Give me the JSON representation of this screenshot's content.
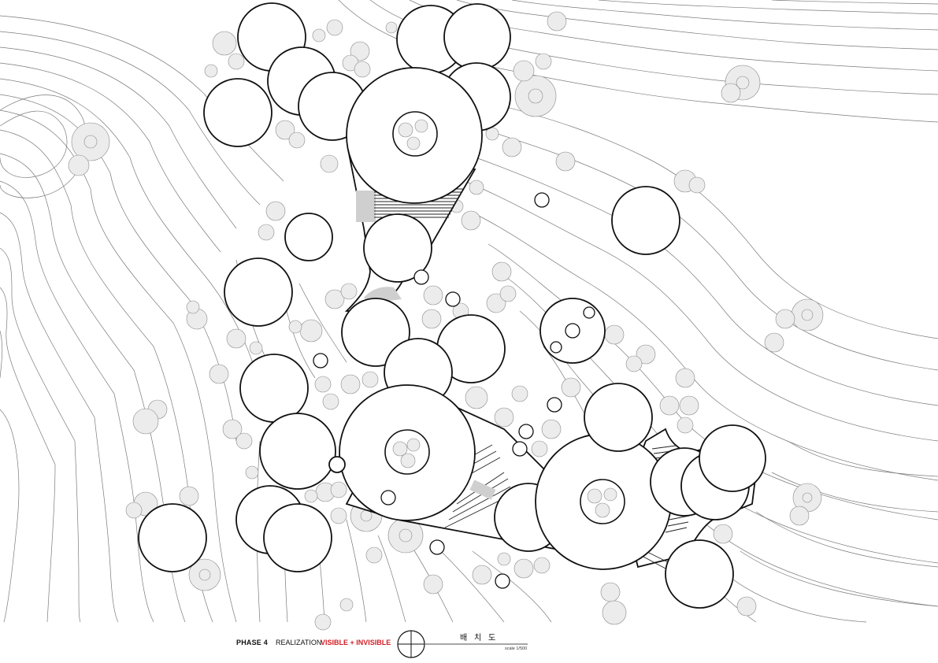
{
  "title_block": {
    "phase": "PHASE 4",
    "stage": "REALIZATION",
    "concept": "VISIBLE + INVISIBLE",
    "drawing_title": "배 치 도",
    "scale": "scale 1/500"
  },
  "colors": {
    "accent": "#d11f26",
    "line": "#111111",
    "contour": "#7a7a7a",
    "tree_fill": "#ececec"
  },
  "icons": [
    "north-arrow-icon"
  ]
}
